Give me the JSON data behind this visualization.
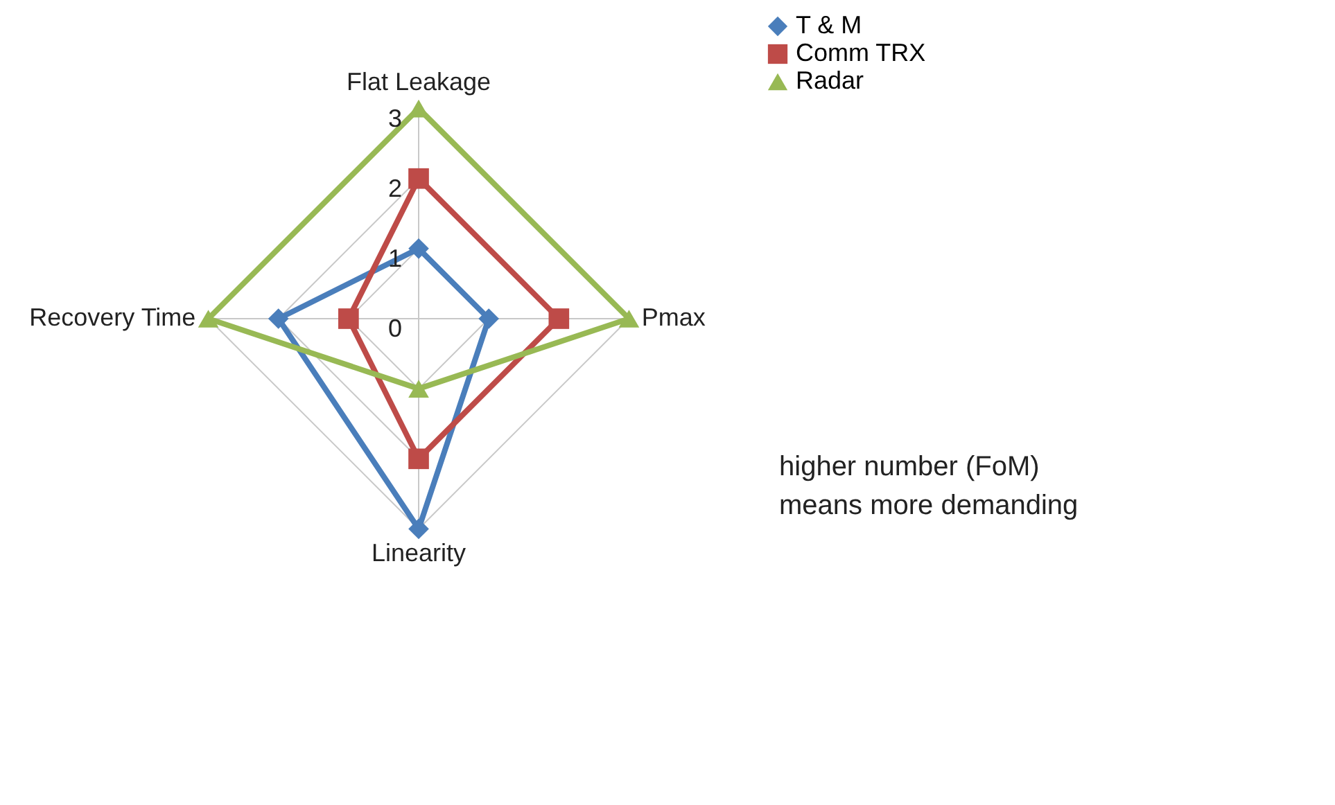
{
  "chart_data": {
    "type": "radar",
    "categories": [
      "Flat Leakage",
      "Pmax",
      "Linearity",
      "Recovery Time"
    ],
    "series": [
      {
        "name": "T & M",
        "color": "#4a7ebb",
        "marker": "diamond",
        "values": [
          1,
          1,
          3,
          2
        ]
      },
      {
        "name": "Comm TRX",
        "color": "#be4b48",
        "marker": "square",
        "values": [
          2,
          2,
          2,
          1
        ]
      },
      {
        "name": "Radar",
        "color": "#98b954",
        "marker": "triangle",
        "values": [
          3,
          3,
          1,
          3
        ]
      }
    ],
    "ylim": [
      0,
      3
    ],
    "yticks": [
      0,
      1,
      2,
      3
    ],
    "grid": true,
    "legend": "right",
    "annotations": [
      "higher number (FoM)\nmeans more demanding"
    ]
  }
}
